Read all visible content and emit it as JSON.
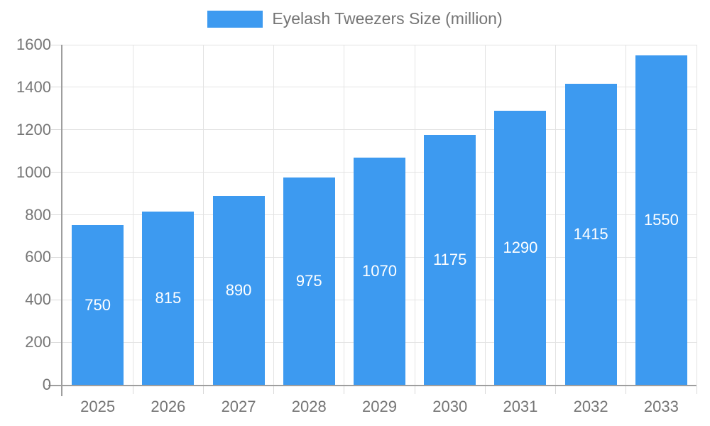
{
  "legend": {
    "label": "Eyelash Tweezers Size (million)"
  },
  "chart_data": {
    "type": "bar",
    "title": "Eyelash Tweezers Size (million)",
    "series_name": "Eyelash Tweezers Size (million)",
    "categories": [
      "2025",
      "2026",
      "2027",
      "2028",
      "2029",
      "2030",
      "2031",
      "2032",
      "2033"
    ],
    "values": [
      750,
      815,
      890,
      975,
      1070,
      1175,
      1290,
      1415,
      1550
    ],
    "xlabel": "",
    "ylabel": "",
    "ylim": [
      0,
      1600
    ],
    "ytick_step": 200,
    "ytick_labels": [
      "0",
      "200",
      "400",
      "600",
      "800",
      "1000",
      "1200",
      "1400",
      "1600"
    ],
    "grid": "on",
    "legend_position": "top-center",
    "bar_label_position": "inside-middle",
    "colors": {
      "bar": "#3d9af0",
      "bar_label": "#ffffff",
      "axis_line": "#9e9e9e",
      "grid_line": "#e3e3e3",
      "tick_line": "#d9d9d9",
      "tick_label": "#757575",
      "legend_text": "#757575",
      "background": "#ffffff"
    }
  }
}
